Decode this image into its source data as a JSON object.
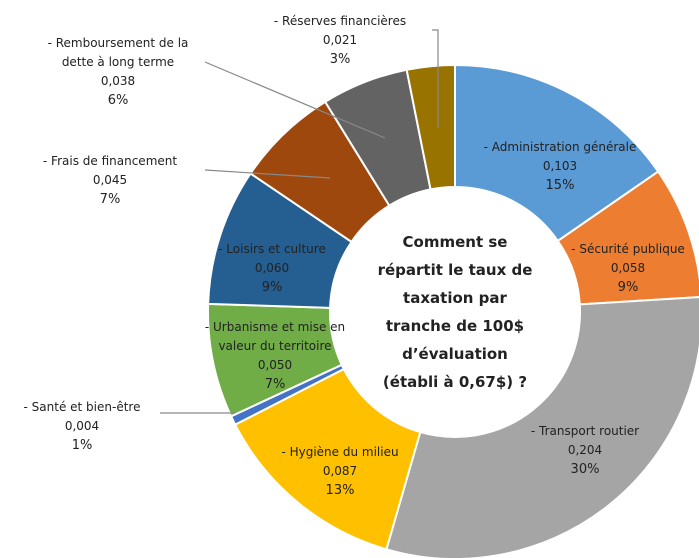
{
  "chart_data": {
    "type": "donut",
    "title": [
      "Comment se",
      "répartit le taux de",
      "taxation par",
      "tranche de 100$",
      "d’évaluation",
      "(établi à 0,67$) ?"
    ],
    "categories": [
      "- Administration générale",
      "- Sécurité publique",
      "- Transport routier",
      "- Hygiène du milieu",
      "- Santé et bien-être",
      "- Urbanisme et mise en valeur du territoire",
      "- Loisirs et culture",
      "- Frais de financement",
      "- Remboursement de la dette à long terme",
      "- Réserves financières"
    ],
    "values": [
      0.103,
      0.058,
      0.204,
      0.087,
      0.004,
      0.05,
      0.06,
      0.045,
      0.038,
      0.021
    ],
    "value_labels": [
      "0,103",
      "0,058",
      "0,204",
      "0,087",
      "0,004",
      "0,050",
      "0,060",
      "0,045",
      "0,038",
      "0,021"
    ],
    "percent_labels": [
      "15%",
      "9%",
      "30%",
      "13%",
      "1%",
      "7%",
      "9%",
      "7%",
      "6%",
      "3%"
    ],
    "colors": [
      "#5b9bd5",
      "#ed7d31",
      "#a5a5a5",
      "#ffc000",
      "#4472c4",
      "#70ad47",
      "#255e91",
      "#9e480e",
      "#636363",
      "#997300"
    ]
  }
}
